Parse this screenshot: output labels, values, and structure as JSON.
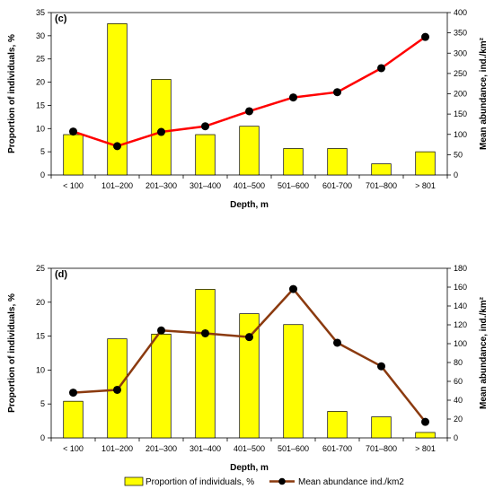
{
  "colors": {
    "bar_fill": "#ffff00",
    "bar_stroke": "#000000",
    "line_c": "#ff0000",
    "line_d": "#8b3a0f",
    "marker": "#000000"
  },
  "legend": {
    "bars_label": "Proportion of individuals, %",
    "line_label": "Mean abundance ind./km2"
  },
  "chart_data": [
    {
      "type": "bar",
      "panel_label": "(c)",
      "categories": [
        "< 100",
        "101–200",
        "201–300",
        "301–400",
        "401–500",
        "501–600",
        "601-700",
        "701–800",
        "> 801"
      ],
      "xlabel": "Depth, m",
      "ylabel": "Proportion of individuals, %",
      "ylim": [
        0,
        35
      ],
      "yticks": [
        0,
        5,
        10,
        15,
        20,
        25,
        30,
        35
      ],
      "y2label": "Mean abundance, ind./km²",
      "y2lim": [
        0,
        400
      ],
      "y2ticks": [
        0,
        50,
        100,
        150,
        200,
        250,
        300,
        350,
        400
      ],
      "series": [
        {
          "kind": "bar",
          "axis": "left",
          "values": [
            8.7,
            32.6,
            20.6,
            8.7,
            10.5,
            5.7,
            5.7,
            2.4,
            5.0
          ]
        },
        {
          "kind": "line",
          "axis": "right",
          "values": [
            107,
            71,
            106,
            120,
            157,
            191,
            204,
            263,
            340
          ]
        }
      ]
    },
    {
      "type": "bar",
      "panel_label": "(d)",
      "categories": [
        "< 100",
        "101–200",
        "201–300",
        "301–400",
        "401–500",
        "501–600",
        "601-700",
        "701–800",
        "> 801"
      ],
      "xlabel": "Depth, m",
      "ylabel": "Proportion of individuals, %",
      "ylim": [
        0,
        25
      ],
      "yticks": [
        0,
        5,
        10,
        15,
        20,
        25
      ],
      "y2label": "Mean abundance, ind./km²",
      "y2lim": [
        0,
        180
      ],
      "y2ticks": [
        0,
        20,
        40,
        60,
        80,
        100,
        120,
        140,
        160,
        180
      ],
      "series": [
        {
          "kind": "bar",
          "axis": "left",
          "values": [
            5.4,
            14.6,
            15.3,
            21.9,
            18.3,
            16.7,
            3.9,
            3.1,
            0.8
          ]
        },
        {
          "kind": "line",
          "axis": "right",
          "values": [
            48,
            51,
            114,
            111,
            107,
            158,
            101,
            76,
            17
          ]
        }
      ]
    }
  ]
}
